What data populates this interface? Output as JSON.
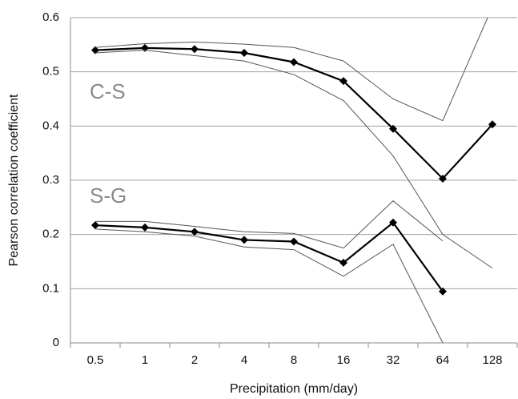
{
  "chart_data": {
    "type": "line",
    "x_label": "Precipitation (mm/day)",
    "y_label": "Pearson correlation coefficient",
    "annotations": [
      "C-S",
      "S-G"
    ],
    "categories": [
      "0.5",
      "1",
      "2",
      "4",
      "8",
      "16",
      "32",
      "64",
      "128"
    ],
    "ylim": [
      0,
      0.6
    ],
    "yticks": [
      0,
      0.1,
      0.2,
      0.3,
      0.4,
      0.5,
      0.6
    ],
    "grid": true,
    "series": [
      {
        "color": "#000000",
        "line_width": 2.2,
        "marker": "diamond",
        "values": [
          0.54,
          0.544,
          0.542,
          0.535,
          0.518,
          0.483,
          0.395,
          0.303,
          0.403
        ]
      },
      {
        "color": "#555555",
        "line_width": 1,
        "values": [
          0.545,
          0.552,
          0.555,
          0.551,
          0.545,
          0.52,
          0.45,
          0.41,
          0.62
        ]
      },
      {
        "color": "#555555",
        "line_width": 1,
        "values": [
          0.535,
          0.54,
          0.53,
          0.52,
          0.495,
          0.447,
          0.345,
          0.2,
          0.138
        ]
      },
      {
        "color": "#000000",
        "line_width": 2.2,
        "marker": "diamond",
        "values": [
          0.217,
          0.213,
          0.205,
          0.19,
          0.187,
          0.148,
          0.222,
          0.095,
          null
        ]
      },
      {
        "color": "#555555",
        "line_width": 1,
        "values": [
          0.224,
          0.224,
          0.215,
          0.205,
          0.202,
          0.175,
          0.262,
          0.188,
          null
        ]
      },
      {
        "color": "#555555",
        "line_width": 1,
        "values": [
          0.21,
          0.205,
          0.197,
          0.177,
          0.172,
          0.123,
          0.182,
          0.0,
          null
        ]
      }
    ]
  }
}
